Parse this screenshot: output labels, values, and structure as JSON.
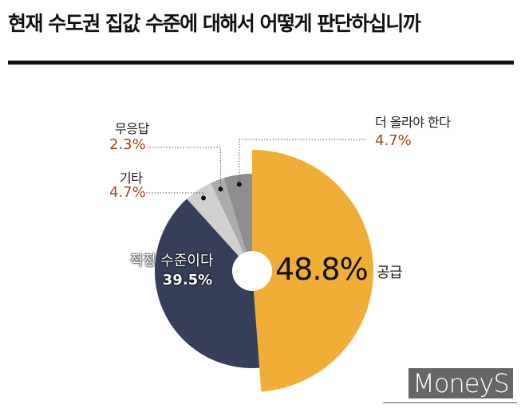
{
  "title": "현재 수도권 집값 수준에 대해서 어떻게 판단하십니까",
  "chart_data": {
    "type": "pie",
    "donut": true,
    "slices": [
      {
        "label": "공급",
        "value": 48.8,
        "display": "48.8%",
        "color": "#f0ae38"
      },
      {
        "label": "적정 수준이다",
        "value": 39.5,
        "display": "39.5%",
        "color": "#363e5a"
      },
      {
        "label": "기타",
        "value": 4.7,
        "display": "4.7%",
        "color": "#d0d0d0"
      },
      {
        "label": "무응답",
        "value": 2.3,
        "display": "2.3%",
        "color": "#ababab"
      },
      {
        "label": "더 올라야 한다",
        "value": 4.7,
        "display": "4.7%",
        "color": "#8e8e8e"
      }
    ],
    "label_color": "#a8431e"
  },
  "logo": "MoneyS"
}
